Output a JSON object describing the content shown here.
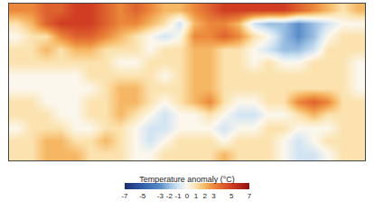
{
  "chart_data": {
    "type": "heatmap",
    "colorbar_title": "Temperature anomaly (°C)",
    "x": [
      -172.5,
      -157.5,
      -142.5,
      -127.5,
      -112.5,
      -97.5,
      -82.5,
      -67.5,
      -52.5,
      -37.5,
      -22.5,
      -7.5,
      7.5,
      22.5,
      37.5,
      52.5,
      67.5,
      82.5,
      97.5,
      112.5,
      127.5,
      142.5,
      157.5,
      172.5
    ],
    "y": [
      82.5,
      67.5,
      52.5,
      37.5,
      22.5,
      7.5,
      -7.5,
      -22.5,
      -37.5,
      -52.5,
      -67.5,
      -82.5
    ],
    "cells": [
      [
        3,
        3,
        4,
        4,
        5,
        5,
        4,
        3,
        4,
        3,
        2,
        2,
        3,
        4,
        5,
        5,
        5,
        5,
        5,
        4,
        3,
        2,
        1,
        2
      ],
      [
        1,
        2,
        4,
        5,
        5,
        5,
        4,
        3,
        3,
        2,
        1,
        -1,
        2,
        3,
        3,
        2,
        -1,
        -2,
        -2,
        -3,
        -2,
        -1,
        0,
        0
      ],
      [
        0,
        1,
        1,
        3,
        4,
        4,
        3,
        2,
        1,
        0,
        -1,
        0,
        3,
        3,
        4,
        3,
        1,
        0,
        -2,
        -3,
        -2,
        0,
        1,
        1
      ],
      [
        1,
        1,
        2,
        1,
        2,
        2,
        1,
        1,
        1,
        0,
        1,
        1,
        2,
        2,
        1,
        1,
        0,
        -1,
        -2,
        -2,
        -1,
        1,
        1,
        1
      ],
      [
        1,
        1,
        1,
        1,
        1,
        1,
        1,
        0,
        0,
        1,
        1,
        1,
        2,
        2,
        1,
        1,
        0,
        1,
        0,
        0,
        1,
        1,
        1,
        0
      ],
      [
        0,
        0,
        0,
        0,
        0,
        1,
        1,
        1,
        1,
        1,
        0,
        1,
        2,
        2,
        1,
        1,
        1,
        1,
        1,
        1,
        1,
        1,
        1,
        0
      ],
      [
        0,
        0,
        0,
        0,
        0,
        0,
        1,
        2,
        2,
        1,
        1,
        1,
        2,
        2,
        1,
        1,
        1,
        1,
        1,
        1,
        1,
        1,
        1,
        0
      ],
      [
        1,
        1,
        0,
        0,
        0,
        1,
        1,
        2,
        2,
        1,
        0,
        1,
        2,
        3,
        1,
        0,
        0,
        1,
        1,
        3,
        4,
        3,
        1,
        1
      ],
      [
        1,
        1,
        1,
        0,
        0,
        1,
        1,
        2,
        1,
        0,
        -1,
        0,
        0,
        1,
        0,
        -1,
        -1,
        0,
        0,
        1,
        2,
        1,
        1,
        1
      ],
      [
        0,
        1,
        1,
        1,
        0,
        0,
        1,
        1,
        0,
        -1,
        -1,
        0,
        0,
        0,
        -1,
        0,
        0,
        1,
        1,
        0,
        0,
        0,
        1,
        1
      ],
      [
        1,
        1,
        2,
        2,
        1,
        1,
        2,
        1,
        0,
        -1,
        0,
        1,
        1,
        1,
        0,
        1,
        1,
        1,
        0,
        -1,
        0,
        1,
        1,
        1
      ],
      [
        1,
        1,
        2,
        2,
        2,
        1,
        1,
        1,
        0,
        0,
        1,
        1,
        1,
        1,
        2,
        1,
        1,
        1,
        0,
        -1,
        -1,
        0,
        1,
        1
      ]
    ],
    "xlim": [
      -180,
      180
    ],
    "ylim": [
      -90,
      90
    ],
    "zlim": [
      -7,
      7
    ],
    "zticks": [
      -7,
      -5,
      -3,
      -2,
      -1,
      0,
      1,
      2,
      3,
      5,
      7
    ],
    "tick_labels": false
  }
}
